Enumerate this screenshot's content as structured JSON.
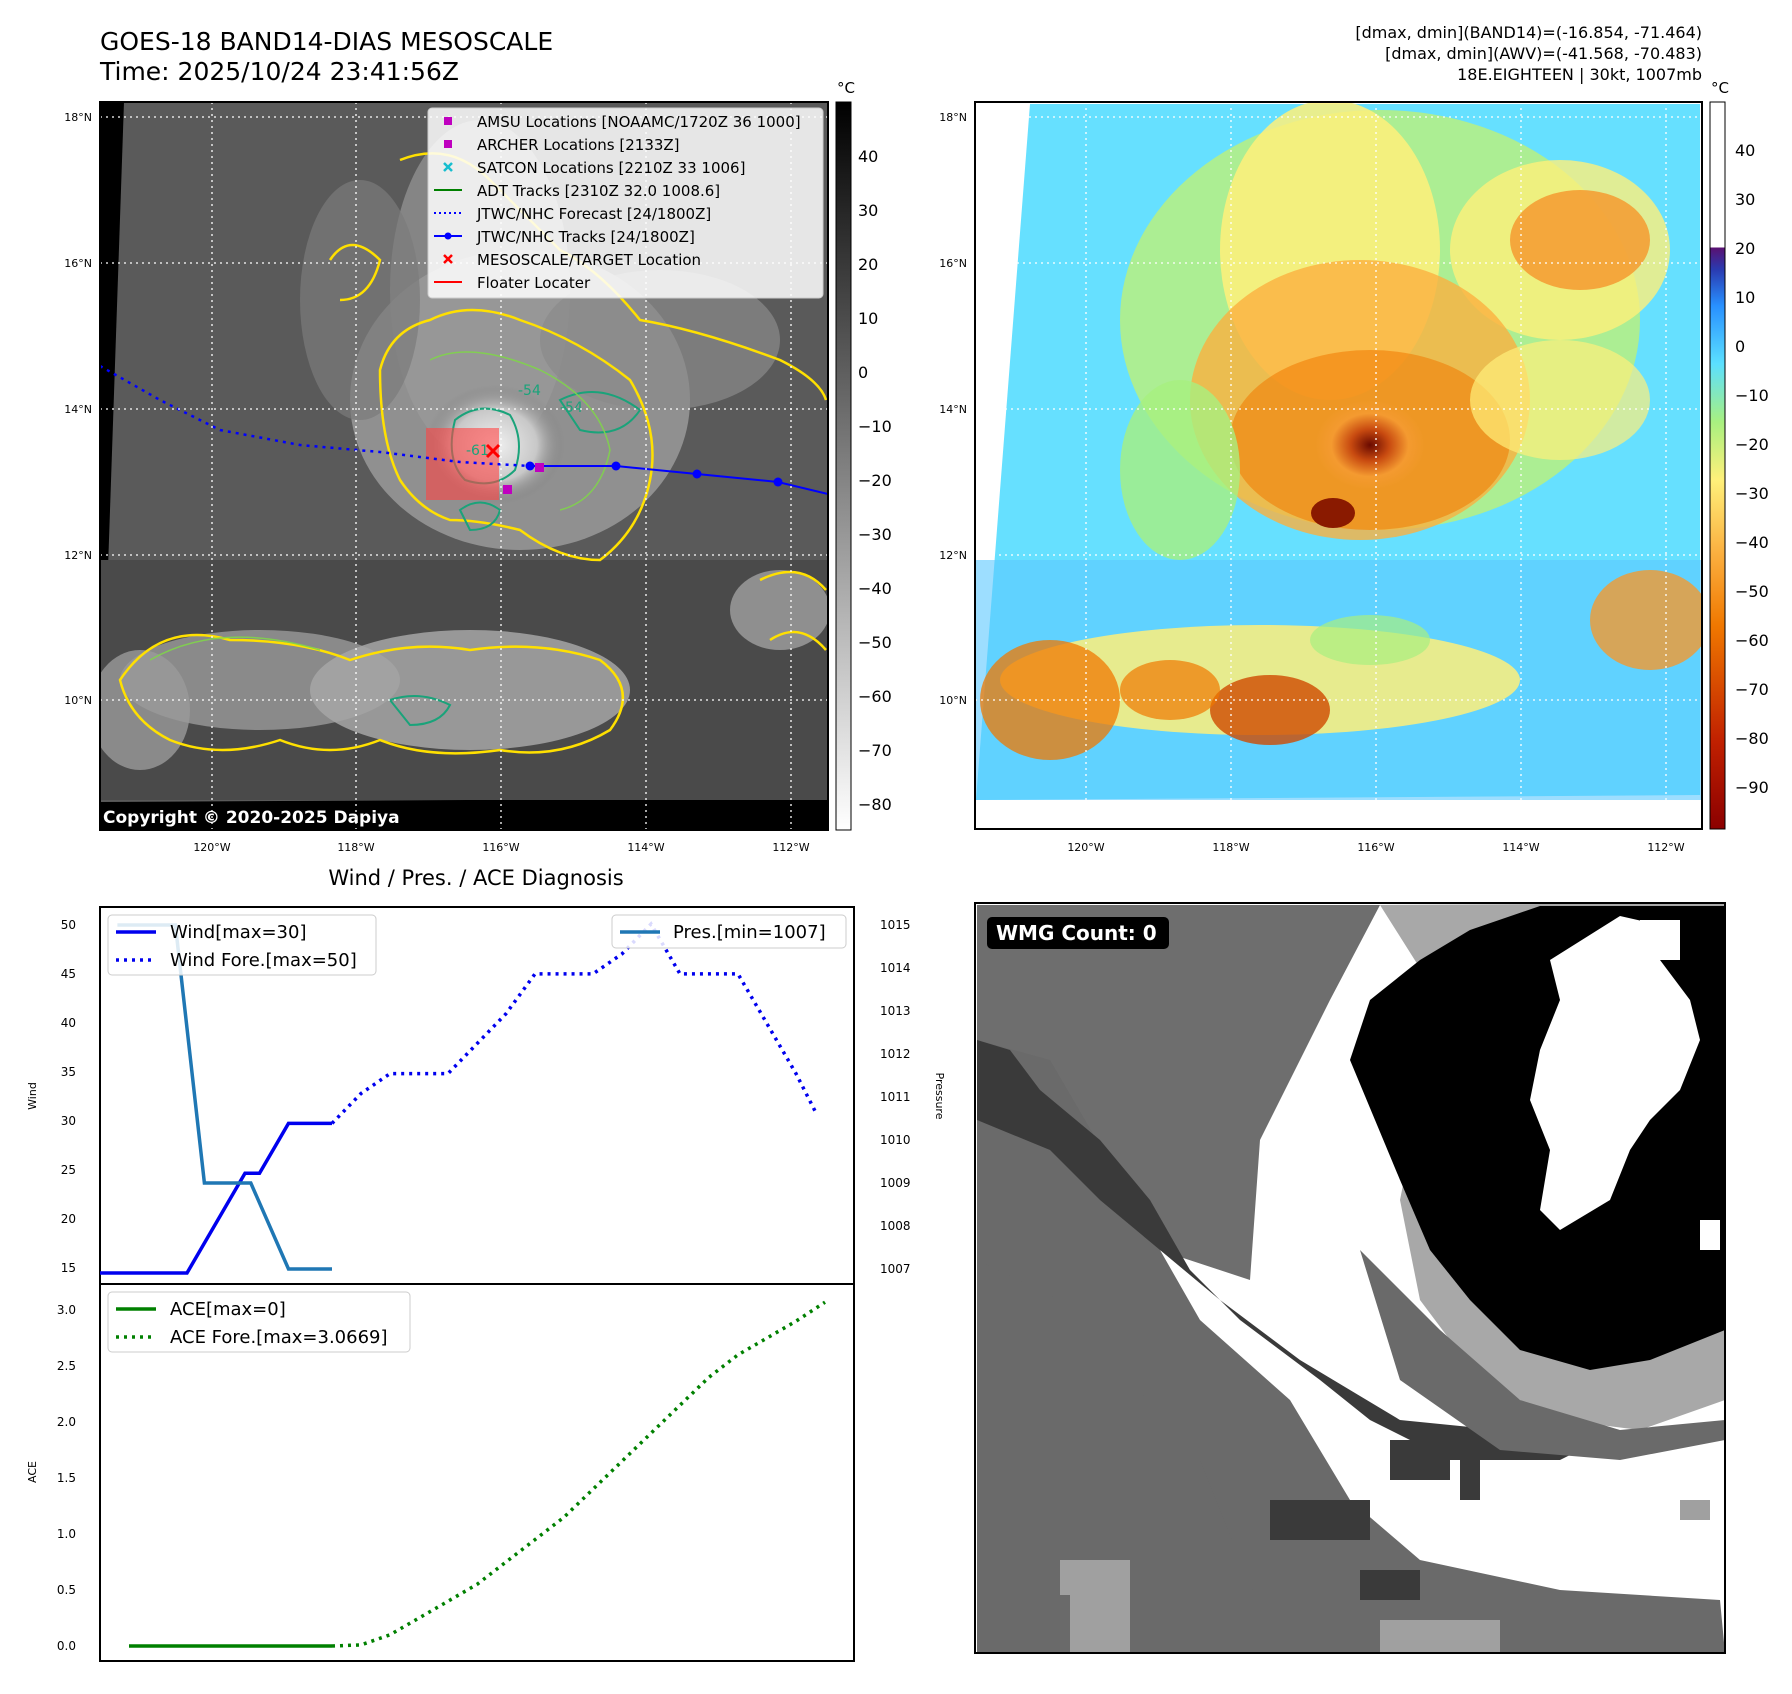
{
  "header": {
    "title_line1": "GOES-18 BAND14-DIAS MESOSCALE",
    "title_line2": "Time: 2025/10/24 23:41:56Z",
    "info_line1": "[dmax, dmin](BAND14)=(-16.854, -71.464)",
    "info_line2": "[dmax, dmin](AWV)=(-41.568, -70.483)",
    "info_line3": "18E.EIGHTEEN | 30kt, 1007mb"
  },
  "ir_panel": {
    "copyright": "Copyright © 2020-2025 Dapiya",
    "contour_labels": [
      "-54",
      "-54",
      "-61"
    ],
    "lat_labels": [
      "18°N",
      "16°N",
      "14°N",
      "12°N",
      "10°N"
    ],
    "lon_labels": [
      "120°W",
      "118°W",
      "116°W",
      "114°W",
      "112°W"
    ],
    "legend": [
      {
        "label": "AMSU Locations [NOAAMC/1720Z 36 1000]",
        "color": "#bf00bf",
        "kind": "square"
      },
      {
        "label": "ARCHER Locations [2133Z]",
        "color": "#bf00bf",
        "kind": "square"
      },
      {
        "label": "SATCON Locations [2210Z 33 1006]",
        "color": "#17becf",
        "kind": "cross"
      },
      {
        "label": "ADT Tracks [2310Z 32.0 1008.6]",
        "color": "#008000",
        "kind": "line"
      },
      {
        "label": "JTWC/NHC Forecast [24/1800Z]",
        "color": "#0000ff",
        "kind": "dotted"
      },
      {
        "label": "JTWC/NHC Tracks [24/1800Z]",
        "color": "#0000ff",
        "kind": "marker-line"
      },
      {
        "label": "MESOSCALE/TARGET Location",
        "color": "#ff0000",
        "kind": "xmark"
      },
      {
        "label": "Floater Locater",
        "color": "#ff0000",
        "kind": "line"
      }
    ],
    "colorbar": {
      "unit": "°C",
      "ticks": [
        "40",
        "30",
        "20",
        "10",
        "0",
        "−10",
        "−20",
        "−30",
        "−40",
        "−50",
        "−60",
        "−70",
        "−80"
      ]
    }
  },
  "wv_panel": {
    "lat_labels": [
      "18°N",
      "16°N",
      "14°N",
      "12°N",
      "10°N"
    ],
    "lon_labels": [
      "120°W",
      "118°W",
      "116°W",
      "114°W",
      "112°W"
    ],
    "colorbar": {
      "unit": "°C",
      "ticks": [
        "40",
        "30",
        "20",
        "10",
        "0",
        "−10",
        "−20",
        "−30",
        "−40",
        "−50",
        "−60",
        "−70",
        "−80",
        "−90"
      ]
    }
  },
  "wmg_panel": {
    "badge": "WMG Count: 0"
  },
  "diag_panel": {
    "title": "Wind / Pres. / ACE Diagnosis",
    "wind_ylabel": "Wind",
    "pres_ylabel": "Pressure",
    "ace_ylabel": "ACE",
    "wind_ticks": [
      "50",
      "45",
      "40",
      "35",
      "30",
      "25",
      "20",
      "15"
    ],
    "pres_ticks": [
      "1015",
      "1014",
      "1013",
      "1012",
      "1011",
      "1010",
      "1009",
      "1008",
      "1007"
    ],
    "ace_ticks": [
      "3.0",
      "2.5",
      "2.0",
      "1.5",
      "1.0",
      "0.5",
      "0.0"
    ],
    "legend_wind": "Wind[max=30]",
    "legend_wind_fore": "Wind Fore.[max=50]",
    "legend_pres": "Pres.[min=1007]",
    "legend_ace": "ACE[max=0]",
    "legend_ace_fore": "ACE Fore.[max=3.0669]",
    "colors": {
      "wind": "#0000ee",
      "pres": "#1f77b4",
      "ace": "#008000"
    }
  },
  "chart_data": [
    {
      "type": "line",
      "title": "Wind / Pres. / ACE Diagnosis",
      "ylabel": "Wind",
      "ylim": [
        14,
        51
      ],
      "series": [
        {
          "name": "Wind[max=30]",
          "x": [
            0,
            3,
            4,
            5,
            5.5,
            6.5,
            8
          ],
          "values": [
            15,
            15,
            20,
            25,
            25,
            30,
            30
          ]
        },
        {
          "name": "Wind Fore.[max=50]",
          "x": [
            8,
            9,
            10,
            11,
            12,
            13,
            14,
            15,
            16,
            17,
            18,
            19,
            20,
            21,
            22,
            23,
            24,
            24.7
          ],
          "values": [
            30,
            33,
            35,
            35,
            35,
            38,
            41,
            45,
            45,
            45,
            47,
            50,
            45,
            45,
            45,
            40,
            35,
            31
          ]
        }
      ]
    },
    {
      "type": "line",
      "ylabel": "Pressure",
      "ylim": [
        1006.8,
        1015.2
      ],
      "series": [
        {
          "name": "Pres.[min=1007]",
          "x": [
            0.6,
            2.6,
            3.6,
            5.2,
            6.5,
            8
          ],
          "values": [
            1015,
            1015,
            1009,
            1009,
            1007,
            1007
          ]
        }
      ]
    },
    {
      "type": "line",
      "ylabel": "ACE",
      "ylim": [
        -0.1,
        3.2
      ],
      "series": [
        {
          "name": "ACE[max=0]",
          "x": [
            1,
            8
          ],
          "values": [
            0,
            0
          ]
        },
        {
          "name": "ACE Fore.[max=3.0669]",
          "x": [
            8,
            9,
            10,
            11,
            12,
            13,
            14,
            15,
            16,
            17,
            18,
            19,
            20,
            21,
            22,
            23,
            24,
            25
          ],
          "values": [
            0,
            0.01,
            0.1,
            0.25,
            0.4,
            0.55,
            0.75,
            0.95,
            1.15,
            1.4,
            1.65,
            1.9,
            2.15,
            2.4,
            2.6,
            2.75,
            2.9,
            3.07
          ]
        }
      ]
    }
  ]
}
